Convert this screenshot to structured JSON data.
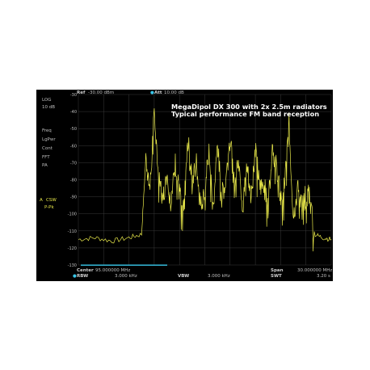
{
  "header": {
    "ref_label": "Ref",
    "ref_value": "-30.00 dBm",
    "att_label": "Att",
    "att_value": "10.00 dB"
  },
  "left_panel": {
    "scale_type": "LOG",
    "scale_div": "10 dB",
    "menu": [
      "Freq",
      "LgPwr",
      "Cont",
      "FFT",
      "PA"
    ],
    "trace_label": "CSW",
    "trace_mode": "P-Pk"
  },
  "annotation": {
    "line1": "MegaDipol DX 300 with 2x 2.5m radiators",
    "line2": "Typical performance FM band reception"
  },
  "footer": {
    "center_label": "Center",
    "center_value": "95.000000 MHz",
    "span_label": "Span",
    "span_value": "30.000000 MHz",
    "rbw_label": "RBW",
    "rbw_value": "3.000 kHz",
    "vbw_label": "VBW",
    "vbw_value": "3.000 kHz",
    "swt_label": "SWT",
    "swt_value": "3.20 s"
  },
  "colors": {
    "trace": "#e8e84a",
    "grid": "#3a3a3a",
    "background": "#000000",
    "marker": "#39c6e8"
  },
  "chart_data": {
    "type": "line",
    "y_ticks": [
      "-30",
      "-40",
      "-50",
      "-60",
      "-70",
      "-80",
      "-90",
      "-100",
      "-110",
      "-120",
      "-130"
    ],
    "ylim": [
      -130,
      -30
    ],
    "xlim": [
      80,
      110
    ],
    "x_unit": "MHz",
    "y_unit": "dBm",
    "grid": true,
    "series": [
      {
        "x": [
          80,
          82,
          84,
          86,
          87.5,
          88,
          88.5,
          89,
          89.5,
          90,
          90.5,
          91,
          91.5,
          92,
          92.5,
          93,
          93.5,
          94,
          94.5,
          95,
          95.5,
          96,
          96.5,
          97,
          97.5,
          98,
          98.5,
          99,
          99.5,
          100,
          100.5,
          101,
          101.5,
          102,
          102.5,
          103,
          103.5,
          104,
          104.5,
          105,
          105.5,
          106,
          106.5,
          107,
          107.5,
          108,
          109,
          110
        ],
        "y": [
          -115,
          -114,
          -116,
          -114,
          -112,
          -68,
          -85,
          -40,
          -78,
          -92,
          -75,
          -95,
          -70,
          -88,
          -100,
          -57,
          -82,
          -70,
          -96,
          -88,
          -62,
          -100,
          -58,
          -90,
          -80,
          -55,
          -84,
          -66,
          -96,
          -72,
          -90,
          -60,
          -85,
          -82,
          -97,
          -60,
          -72,
          -92,
          -80,
          -48,
          -102,
          -86,
          -92,
          -90,
          -88,
          -112,
          -114,
          -115
        ]
      }
    ]
  }
}
